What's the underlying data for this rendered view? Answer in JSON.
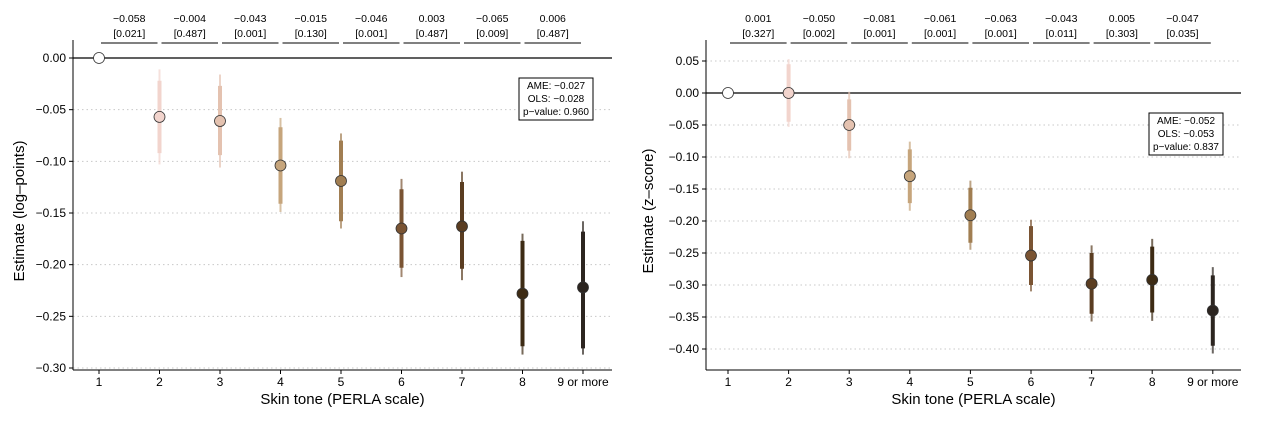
{
  "chart_data": [
    {
      "type": "scatter",
      "xlabel": "Skin tone (PERLA scale)",
      "ylabel": "Estimate  (log–points)",
      "categories": [
        "1",
        "2",
        "3",
        "4",
        "5",
        "6",
        "7",
        "8",
        "9 or more"
      ],
      "yticks": [
        "0.00",
        "−0.05",
        "−0.10",
        "−0.15",
        "−0.20",
        "−0.25",
        "−0.30"
      ],
      "ylim": [
        -0.3,
        0.0
      ],
      "grid": "horizontal dotted",
      "series": [
        {
          "estimates": [
            0.0,
            -0.057,
            -0.061,
            -0.104,
            -0.119,
            -0.165,
            -0.163,
            -0.228,
            -0.222
          ],
          "ci90": [
            null,
            [
              -0.092,
              -0.022
            ],
            [
              -0.094,
              -0.027
            ],
            [
              -0.141,
              -0.067
            ],
            [
              -0.158,
              -0.08
            ],
            [
              -0.203,
              -0.127
            ],
            [
              -0.204,
              -0.12
            ],
            [
              -0.279,
              -0.177
            ],
            [
              -0.281,
              -0.168
            ]
          ],
          "ci95": [
            null,
            [
              -0.103,
              -0.011
            ],
            [
              -0.106,
              -0.016
            ],
            [
              -0.149,
              -0.058
            ],
            [
              -0.165,
              -0.073
            ],
            [
              -0.212,
              -0.117
            ],
            [
              -0.215,
              -0.11
            ],
            [
              -0.287,
              -0.17
            ],
            [
              -0.287,
              -0.158
            ]
          ]
        }
      ],
      "diffs": [
        {
          "est": "−0.058",
          "p": "[0.021]"
        },
        {
          "est": "−0.004",
          "p": "[0.487]"
        },
        {
          "est": "−0.043",
          "p": "[0.001]"
        },
        {
          "est": "−0.015",
          "p": "[0.130]"
        },
        {
          "est": "−0.046",
          "p": "[0.001]"
        },
        {
          "est": "0.003",
          "p": "[0.487]"
        },
        {
          "est": "−0.065",
          "p": "[0.009]"
        },
        {
          "est": "0.006",
          "p": "[0.487]"
        }
      ],
      "stats_box": [
        "AME: −0.027",
        "OLS: −0.028",
        "p−value: 0.960"
      ]
    },
    {
      "type": "scatter",
      "xlabel": "Skin tone (PERLA scale)",
      "ylabel": "Estimate  (z–score)",
      "categories": [
        "1",
        "2",
        "3",
        "4",
        "5",
        "6",
        "7",
        "8",
        "9 or more"
      ],
      "yticks": [
        "0.05",
        "0.00",
        "−0.05",
        "−0.10",
        "−0.15",
        "−0.20",
        "−0.25",
        "−0.30",
        "−0.35",
        "−0.40"
      ],
      "ylim": [
        -0.4,
        0.05
      ],
      "grid": "horizontal dotted",
      "series": [
        {
          "estimates": [
            0.0,
            0.0,
            -0.05,
            -0.13,
            -0.191,
            -0.254,
            -0.298,
            -0.292,
            -0.34
          ],
          "ci90": [
            null,
            [
              -0.045,
              0.045
            ],
            [
              -0.09,
              -0.01
            ],
            [
              -0.172,
              -0.088
            ],
            [
              -0.234,
              -0.148
            ],
            [
              -0.3,
              -0.208
            ],
            [
              -0.345,
              -0.25
            ],
            [
              -0.343,
              -0.24
            ],
            [
              -0.395,
              -0.285
            ]
          ],
          "ci95": [
            null,
            [
              -0.053,
              0.053
            ],
            [
              -0.102,
              0.002
            ],
            [
              -0.184,
              -0.076
            ],
            [
              -0.245,
              -0.137
            ],
            [
              -0.31,
              -0.198
            ],
            [
              -0.357,
              -0.238
            ],
            [
              -0.356,
              -0.228
            ],
            [
              -0.407,
              -0.272
            ]
          ]
        }
      ],
      "diffs": [
        {
          "est": "0.001",
          "p": "[0.327]"
        },
        {
          "est": "−0.050",
          "p": "[0.002]"
        },
        {
          "est": "−0.081",
          "p": "[0.001]"
        },
        {
          "est": "−0.061",
          "p": "[0.001]"
        },
        {
          "est": "−0.063",
          "p": "[0.001]"
        },
        {
          "est": "−0.043",
          "p": "[0.011]"
        },
        {
          "est": "0.005",
          "p": "[0.303]"
        },
        {
          "est": "−0.047",
          "p": "[0.035]"
        }
      ],
      "stats_box": [
        "AME: −0.052",
        "OLS: −0.053",
        "p−value: 0.837"
      ]
    }
  ],
  "colors": {
    "tone_1": "#ffffff",
    "tone_2": "#f2d4cd",
    "tone_3": "#e4c2b0",
    "tone_4": "#c6a57c",
    "tone_5": "#a17e52",
    "tone_6": "#7a5433",
    "tone_7": "#5a3d21",
    "tone_8": "#3d2b14",
    "tone_9": "#2c2520",
    "axis": "#000000",
    "grid": "#c8c8c8"
  }
}
